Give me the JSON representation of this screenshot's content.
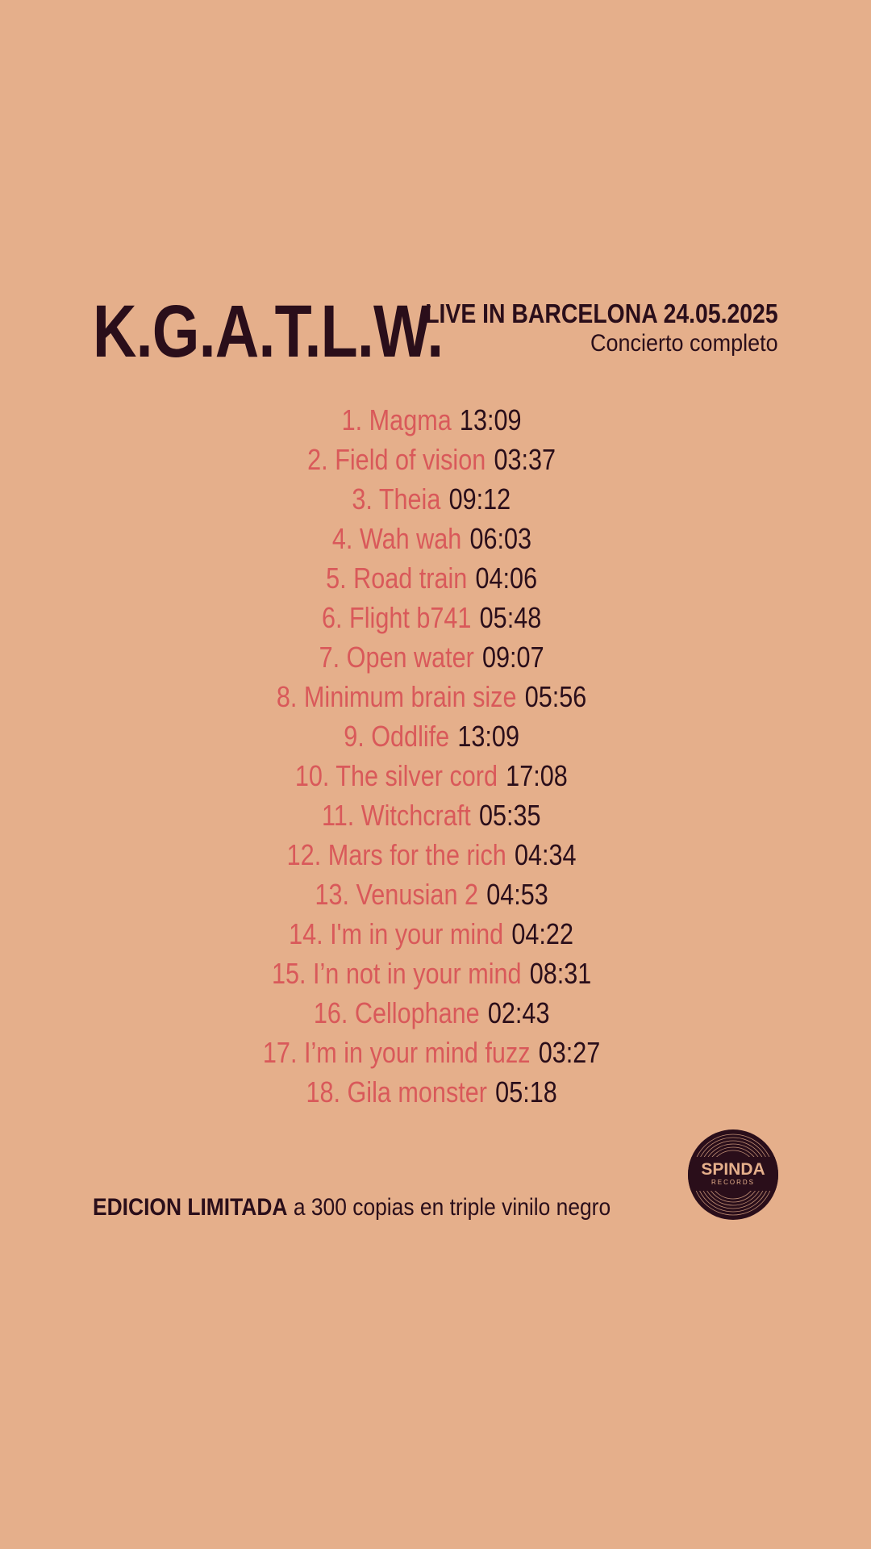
{
  "header": {
    "band": "K.G.A.T.L.W.",
    "event": "LIVE IN BARCELONA 24.05.2025",
    "subtitle": "Concierto completo"
  },
  "tracks": [
    {
      "name": "1. Magma",
      "time": "13:09"
    },
    {
      "name": "2. Field of vision",
      "time": "03:37"
    },
    {
      "name": "3. Theia",
      "time": "09:12"
    },
    {
      "name": "4. Wah wah",
      "time": "06:03"
    },
    {
      "name": "5. Road train",
      "time": "04:06"
    },
    {
      "name": "6. Flight b741",
      "time": "05:48"
    },
    {
      "name": "7. Open water",
      "time": "09:07"
    },
    {
      "name": "8. Minimum brain size",
      "time": "05:56"
    },
    {
      "name": "9. Oddlife",
      "time": "13:09"
    },
    {
      "name": "10. The silver cord",
      "time": "17:08"
    },
    {
      "name": "11. Witchcraft",
      "time": "05:35"
    },
    {
      "name": "12. Mars for the rich",
      "time": "04:34"
    },
    {
      "name": "13. Venusian 2",
      "time": "04:53"
    },
    {
      "name": "14. I'm in your mind",
      "time": "04:22"
    },
    {
      "name": "15. I’n not in your mind",
      "time": "08:31"
    },
    {
      "name": "16. Cellophane",
      "time": "02:43"
    },
    {
      "name": "17. I’m in your mind fuzz",
      "time": "03:27"
    },
    {
      "name": "18. Gila monster",
      "time": "05:18"
    }
  ],
  "footer": {
    "edition_bold": "EDICION LIMITADA",
    "edition_rest": " a 300 copias en triple vinilo negro",
    "logo_name": "SPINDA",
    "logo_sub": "RECORDS"
  },
  "colors": {
    "background": "#E5AF8B",
    "dark": "#2A0E1A",
    "accent": "#D9595A"
  }
}
